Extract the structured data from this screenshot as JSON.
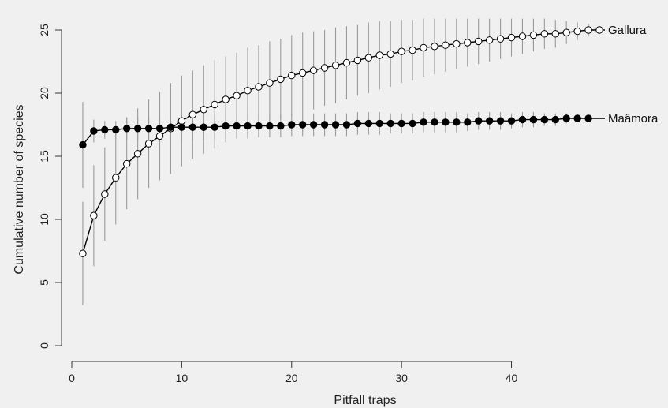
{
  "chart_data": {
    "type": "line",
    "title": "",
    "xlabel": "Pitfall traps",
    "ylabel": "Cumulative number of species",
    "xlim": [
      0,
      50
    ],
    "ylim": [
      0,
      26
    ],
    "xticks": [
      0,
      10,
      20,
      30,
      40
    ],
    "yticks": [
      0,
      5,
      10,
      15,
      20,
      25
    ],
    "grid": false,
    "legend": "none",
    "colors": {
      "background": "#f0f0f0",
      "line": "#000000",
      "error_bar": "#9a9a9a",
      "axis": "#333333"
    },
    "series": [
      {
        "name": "Gallura",
        "marker": "open-circle",
        "x": [
          1,
          2,
          3,
          4,
          5,
          6,
          7,
          8,
          9,
          10,
          11,
          12,
          13,
          14,
          15,
          16,
          17,
          18,
          19,
          20,
          21,
          22,
          23,
          24,
          25,
          26,
          27,
          28,
          29,
          30,
          31,
          32,
          33,
          34,
          35,
          36,
          37,
          38,
          39,
          40,
          41,
          42,
          43,
          44,
          45,
          46,
          47,
          48
        ],
        "y": [
          7.3,
          10.3,
          12.0,
          13.3,
          14.4,
          15.2,
          16.0,
          16.6,
          17.2,
          17.8,
          18.3,
          18.7,
          19.1,
          19.5,
          19.8,
          20.2,
          20.5,
          20.8,
          21.1,
          21.4,
          21.6,
          21.8,
          22.0,
          22.2,
          22.4,
          22.6,
          22.8,
          23.0,
          23.1,
          23.3,
          23.4,
          23.6,
          23.7,
          23.8,
          23.9,
          24.0,
          24.1,
          24.2,
          24.3,
          24.4,
          24.5,
          24.6,
          24.7,
          24.7,
          24.8,
          24.9,
          25.0,
          25.0
        ],
        "err": [
          4.1,
          4.0,
          3.7,
          3.7,
          3.6,
          3.6,
          3.5,
          3.5,
          3.6,
          3.6,
          3.5,
          3.5,
          3.5,
          3.4,
          3.4,
          3.4,
          3.3,
          3.3,
          3.2,
          3.2,
          3.2,
          3.1,
          3.0,
          3.0,
          2.9,
          2.8,
          2.8,
          2.7,
          2.6,
          2.5,
          2.4,
          2.3,
          2.2,
          2.1,
          2.0,
          1.9,
          1.8,
          1.7,
          1.6,
          1.5,
          1.4,
          1.3,
          1.2,
          1.1,
          0.9,
          0.7,
          0.5,
          0.0
        ]
      },
      {
        "name": "Maâmora",
        "marker": "filled-circle",
        "x": [
          1,
          2,
          3,
          4,
          5,
          6,
          7,
          8,
          9,
          10,
          11,
          12,
          13,
          14,
          15,
          16,
          17,
          18,
          19,
          20,
          21,
          22,
          23,
          24,
          25,
          26,
          27,
          28,
          29,
          30,
          31,
          32,
          33,
          34,
          35,
          36,
          37,
          38,
          39,
          40,
          41,
          42,
          43,
          44,
          45,
          46,
          47
        ],
        "y": [
          15.9,
          17.0,
          17.1,
          17.1,
          17.2,
          17.2,
          17.2,
          17.2,
          17.3,
          17.3,
          17.3,
          17.3,
          17.3,
          17.4,
          17.4,
          17.4,
          17.4,
          17.4,
          17.4,
          17.5,
          17.5,
          17.5,
          17.5,
          17.5,
          17.5,
          17.6,
          17.6,
          17.6,
          17.6,
          17.6,
          17.6,
          17.7,
          17.7,
          17.7,
          17.7,
          17.7,
          17.8,
          17.8,
          17.8,
          17.8,
          17.9,
          17.9,
          17.9,
          17.9,
          18.0,
          18.0,
          18.0
        ],
        "err": [
          3.4,
          0.9,
          0.7,
          0.7,
          0.9,
          0.9,
          0.9,
          1.0,
          1.0,
          1.0,
          1.0,
          1.0,
          1.0,
          1.0,
          1.0,
          1.0,
          0.9,
          0.9,
          0.9,
          0.9,
          0.9,
          0.9,
          0.9,
          0.9,
          0.9,
          0.9,
          0.9,
          0.9,
          0.8,
          0.8,
          0.8,
          0.8,
          0.8,
          0.8,
          0.8,
          0.7,
          0.7,
          0.7,
          0.7,
          0.6,
          0.6,
          0.6,
          0.5,
          0.5,
          0.4,
          0.3,
          0.2
        ]
      }
    ]
  }
}
